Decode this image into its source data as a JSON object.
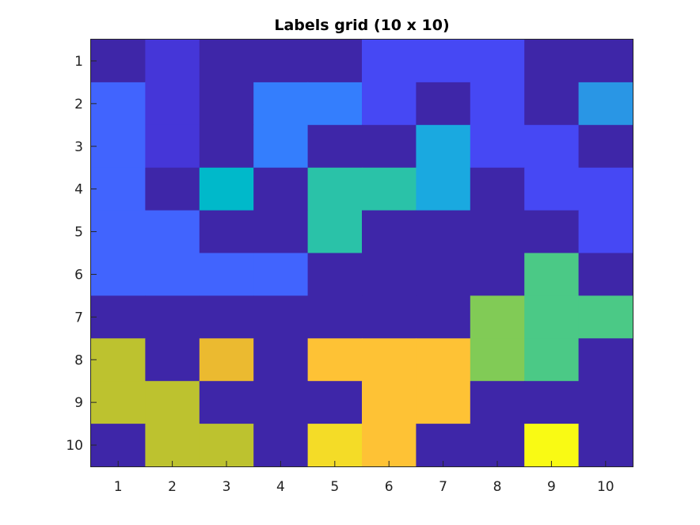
{
  "chart_data": {
    "type": "heatmap",
    "title": "Labels grid (10 x 10)",
    "xlabel": "",
    "ylabel": "",
    "x_ticks": [
      "1",
      "2",
      "3",
      "4",
      "5",
      "6",
      "7",
      "8",
      "9",
      "10"
    ],
    "y_ticks": [
      "1",
      "2",
      "3",
      "4",
      "5",
      "6",
      "7",
      "8",
      "9",
      "10"
    ],
    "colormap": "parula",
    "clim": [
      0,
      13
    ],
    "grid": false,
    "values": [
      [
        0,
        1,
        0,
        0,
        0,
        2,
        2,
        2,
        0,
        0
      ],
      [
        3,
        1,
        0,
        4,
        4,
        2,
        0,
        2,
        0,
        5
      ],
      [
        3,
        1,
        0,
        4,
        0,
        0,
        6,
        2,
        2,
        0
      ],
      [
        3,
        0,
        7,
        0,
        8,
        8,
        6,
        0,
        2,
        2
      ],
      [
        3,
        3,
        0,
        0,
        8,
        0,
        0,
        0,
        0,
        2
      ],
      [
        3,
        3,
        3,
        3,
        0,
        0,
        0,
        0,
        9,
        0
      ],
      [
        0,
        0,
        0,
        0,
        0,
        0,
        0,
        10,
        9,
        9
      ],
      [
        11,
        0,
        12,
        0,
        12,
        12,
        12,
        10,
        9,
        0
      ],
      [
        11,
        11,
        0,
        0,
        0,
        12,
        12,
        0,
        0,
        0
      ],
      [
        0,
        11,
        11,
        0,
        13,
        12,
        0,
        0,
        14,
        0
      ]
    ],
    "colors": {
      "0": "#3E26A8",
      "1": "#4536D8",
      "2": "#4648F4",
      "3": "#4164FE",
      "4": "#347EFD",
      "5": "#2996E5",
      "6": "#1AA9E0",
      "7": "#00B9CA",
      "8": "#2AC2A8",
      "9": "#4BC986",
      "10": "#81CB56",
      "11": "#BDC22F",
      "12": "#FEC235",
      "13": "#F4DC27",
      "14": "#F9FA14",
      "orange_cell": "#EBBA30"
    }
  }
}
